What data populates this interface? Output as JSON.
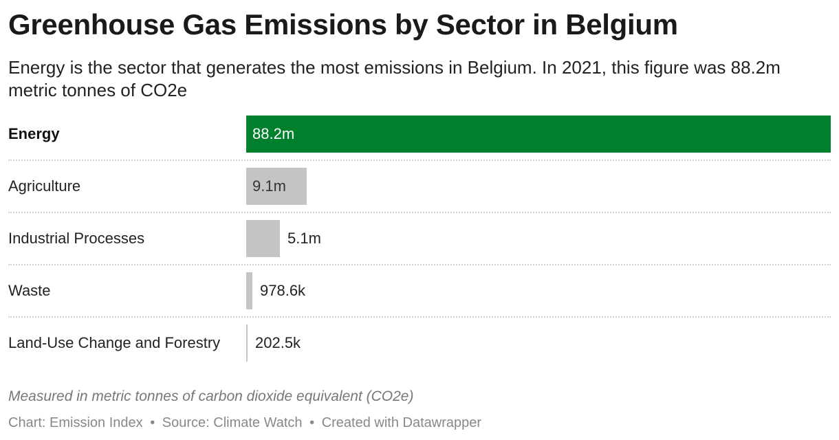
{
  "title": "Greenhouse Gas Emissions by Sector in Belgium",
  "subtitle": "Energy is the sector that generates the most emissions in Belgium. In 2021, this figure was 88.2m metric tonnes of CO2e",
  "note": "Measured in metric tonnes of carbon dioxide equivalent (CO2e)",
  "footer": {
    "chart": "Chart: Emission Index",
    "source": "Source: Climate Watch",
    "created": "Created with Datawrapper",
    "separator": "•"
  },
  "colors": {
    "highlight": "#007f2d",
    "default_bar": "#c4c4c4"
  },
  "chart_data": {
    "type": "bar",
    "orientation": "horizontal",
    "categories": [
      "Energy",
      "Agriculture",
      "Industrial Processes",
      "Waste",
      "Land-Use Change and Forestry"
    ],
    "values": [
      88200000,
      9100000,
      5100000,
      978600,
      202500
    ],
    "value_labels": [
      "88.2m",
      "9.1m",
      "5.1m",
      "978.6k",
      "202.5k"
    ],
    "highlighted_category": "Energy",
    "xlim": [
      0,
      88200000
    ],
    "grid": false,
    "legend": "none"
  }
}
